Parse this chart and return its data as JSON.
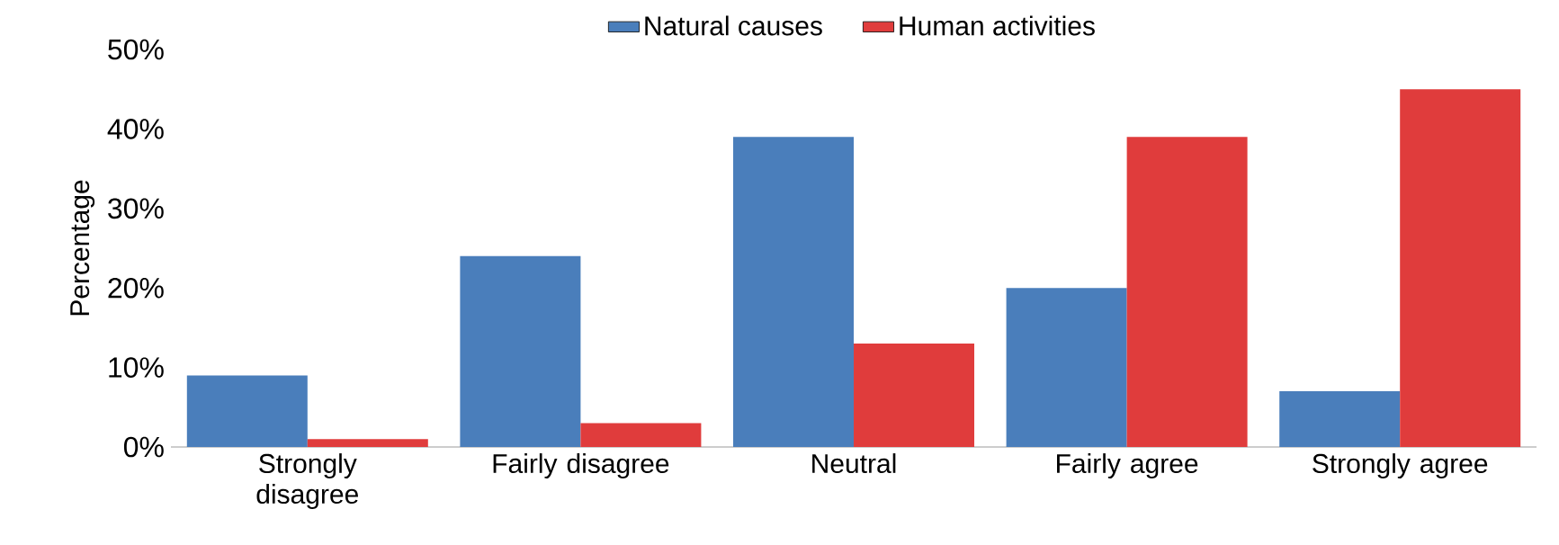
{
  "chart_data": {
    "type": "bar",
    "ylabel": "Percentage",
    "categories": [
      "Strongly disagree",
      "Fairly disagree",
      "Neutral",
      "Fairly agree",
      "Strongly agree"
    ],
    "series": [
      {
        "name": "Natural causes",
        "color": "#4a7ebb",
        "values": [
          9,
          24,
          39,
          20,
          7
        ]
      },
      {
        "name": "Human activities",
        "color": "#e03c3c",
        "values": [
          1,
          3,
          13,
          39,
          45
        ]
      }
    ],
    "ylim": [
      0,
      50
    ],
    "yticks": [
      {
        "value": 0,
        "label": "0%"
      },
      {
        "value": 10,
        "label": "10%"
      },
      {
        "value": 20,
        "label": "20%"
      },
      {
        "value": 30,
        "label": "30%"
      },
      {
        "value": 40,
        "label": "40%"
      },
      {
        "value": 50,
        "label": "50%"
      }
    ],
    "legend": "top",
    "grid": false
  }
}
